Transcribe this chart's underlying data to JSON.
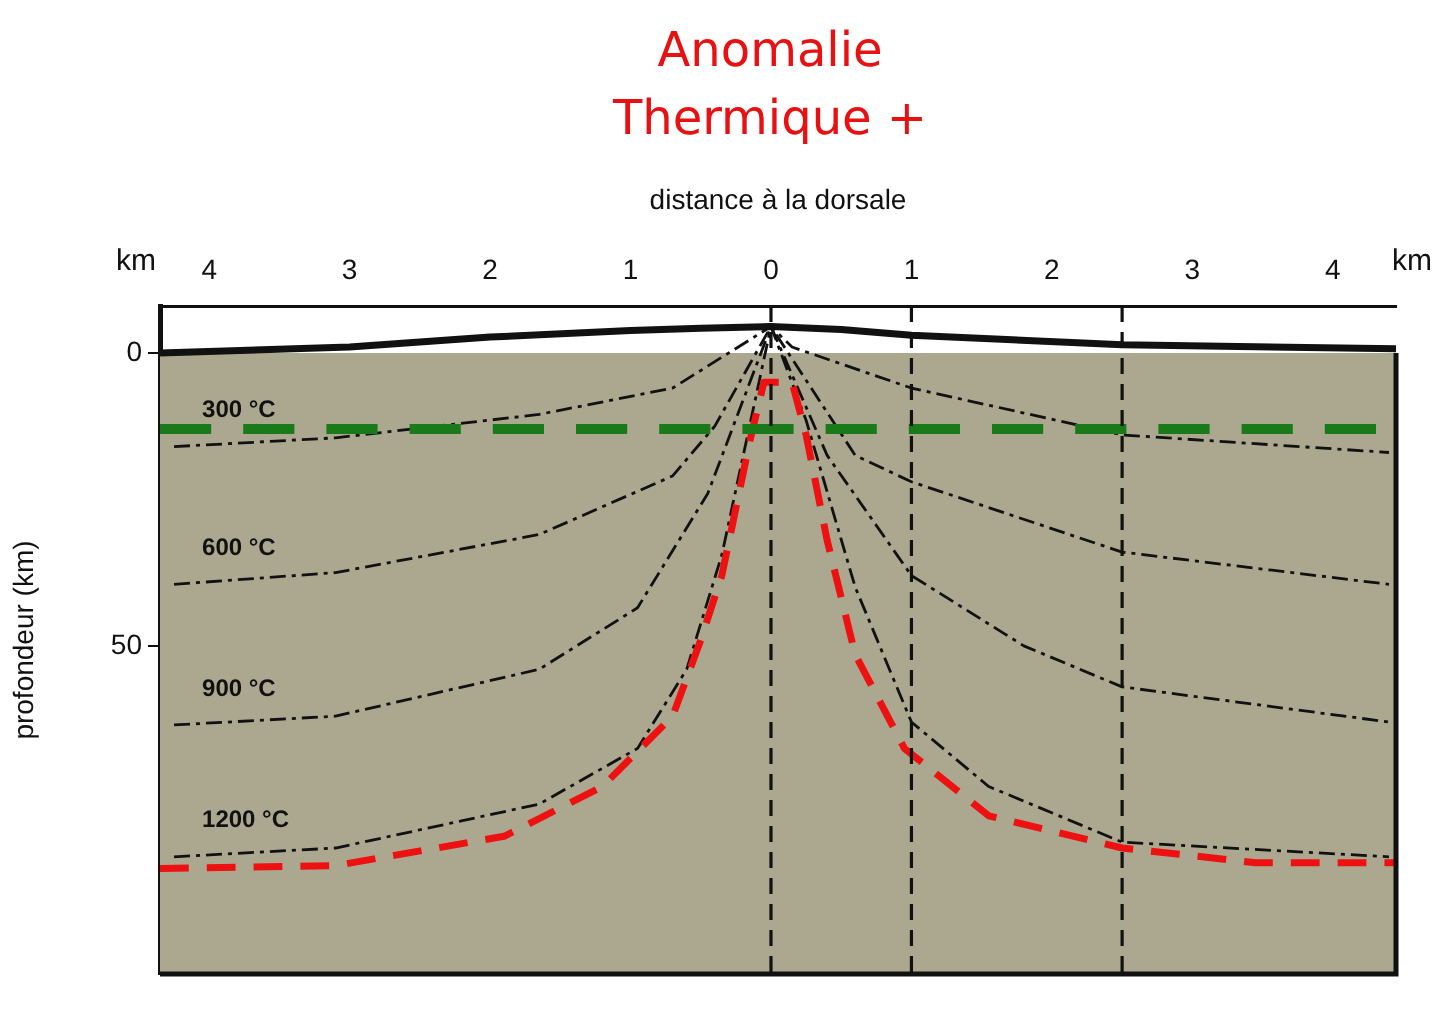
{
  "chart_data": {
    "type": "line",
    "title": "Anomalie Thermique +",
    "xlabel": "distance à la dorsale",
    "ylabel": "profondeur (km)",
    "annotations": [
      "km",
      "km"
    ],
    "xlim": [
      -4.35,
      4.45
    ],
    "ylim": [
      106,
      -8
    ],
    "xticks": [
      {
        "value": -4,
        "label": "4"
      },
      {
        "value": -3,
        "label": "3"
      },
      {
        "value": -2,
        "label": "2"
      },
      {
        "value": -1,
        "label": "1"
      },
      0,
      1,
      2,
      3,
      4
    ],
    "yticks": [
      0,
      50
    ],
    "grid": false,
    "legend": false,
    "marker": "none",
    "series": [
      {
        "color": "#111111",
        "line_style": "solid",
        "x": [
          -4.35,
          -3,
          -2,
          -1,
          -0.5,
          0,
          0.5,
          1,
          2.5,
          4.45
        ],
        "values": [
          0,
          -1,
          -2.7,
          -3.8,
          -4.2,
          -4.5,
          -4,
          -3,
          -1.4,
          -0.7
        ]
      },
      {
        "name": "300 °C",
        "color": "#111111",
        "line_style": "dashed",
        "x": [
          -4.25,
          -3.1,
          -1.65,
          -0.7,
          0,
          0.15,
          1,
          2.5,
          4.4
        ],
        "values": [
          16,
          14.5,
          10.5,
          6,
          -4.5,
          -1,
          6,
          14,
          17
        ]
      },
      {
        "name": "600 °C",
        "color": "#111111",
        "line_style": "dashed",
        "x": [
          -4.25,
          -3.1,
          -1.65,
          -0.7,
          -0.4,
          0,
          0.6,
          1,
          2.5,
          4.4
        ],
        "values": [
          39.5,
          37.5,
          31,
          21,
          12.5,
          -4.5,
          17.5,
          22,
          34,
          39.5
        ]
      },
      {
        "name": "900 °C",
        "color": "#111111",
        "line_style": "dashed",
        "x": [
          -4.25,
          -3.1,
          -1.65,
          -0.95,
          -0.45,
          0,
          0.4,
          1,
          1.8,
          2.5,
          4.4
        ],
        "values": [
          63.5,
          62,
          54,
          43.5,
          24,
          -4.5,
          17.5,
          38,
          50,
          57,
          63
        ]
      },
      {
        "name": "1200 °C",
        "color": "#111111",
        "line_style": "dashed",
        "x": [
          -4.25,
          -3.1,
          -1.65,
          -0.95,
          -0.6,
          -0.35,
          0,
          0.25,
          0.6,
          1,
          1.55,
          2.5,
          4.4
        ],
        "values": [
          86,
          84.5,
          77,
          67.5,
          54,
          34.5,
          -4.5,
          11.5,
          40,
          63,
          74,
          83.5,
          86
        ]
      },
      {
        "color": "#ee1111",
        "line_style": "dashed",
        "x": [
          -4.35,
          -3.1,
          -1.9,
          -1.2,
          -0.7,
          -0.5,
          -0.35,
          -0.15,
          -0.05,
          0.15,
          0.25,
          0.4,
          0.6,
          0.95,
          1.55,
          2.5,
          3.45,
          4.45
        ],
        "values": [
          88,
          87.5,
          82.5,
          74,
          62,
          49,
          38,
          15,
          5,
          5,
          14,
          32,
          51.5,
          67.5,
          79,
          84.5,
          87,
          87
        ]
      }
    ],
    "ref_lines": [
      {
        "axis": "y",
        "value": 13,
        "color": "#1a7a1a",
        "line_style": "dashed"
      },
      {
        "axis": "x",
        "value": 0,
        "color": "#111111",
        "line_style": "dashed"
      },
      {
        "axis": "x",
        "value": 1,
        "color": "#111111",
        "line_style": "dashed"
      },
      {
        "axis": "x",
        "value": 2.5,
        "color": "#111111",
        "line_style": "dashed"
      }
    ]
  }
}
